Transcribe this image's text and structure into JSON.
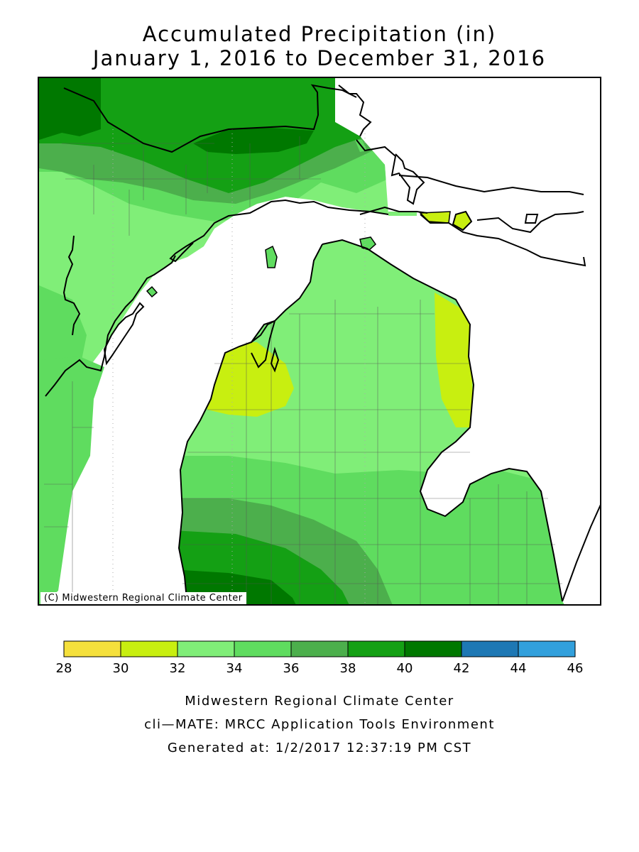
{
  "title": {
    "line1": "Accumulated Precipitation (in)",
    "line2": "January 1, 2016 to December 31, 2016"
  },
  "map": {
    "region": "Michigan",
    "copyright": "(C) Midwestern Regional Climate Center"
  },
  "legend": {
    "unit": "in",
    "ticks": [
      "28",
      "30",
      "32",
      "34",
      "36",
      "38",
      "40",
      "42",
      "44",
      "46"
    ],
    "colors": [
      "#f5e03c",
      "#c8ef10",
      "#80ee78",
      "#5fdc5f",
      "#4caf4c",
      "#14a014",
      "#007800",
      "#1e78b4",
      "#32a0dc"
    ]
  },
  "footer": {
    "line1": "Midwestern Regional Climate Center",
    "line2": "cli—MATE: MRCC Application Tools Environment",
    "line3": "Generated at: 1/2/2017 12:37:19 PM CST"
  },
  "colors": {
    "water": "#ffffff",
    "border": "#000000"
  }
}
